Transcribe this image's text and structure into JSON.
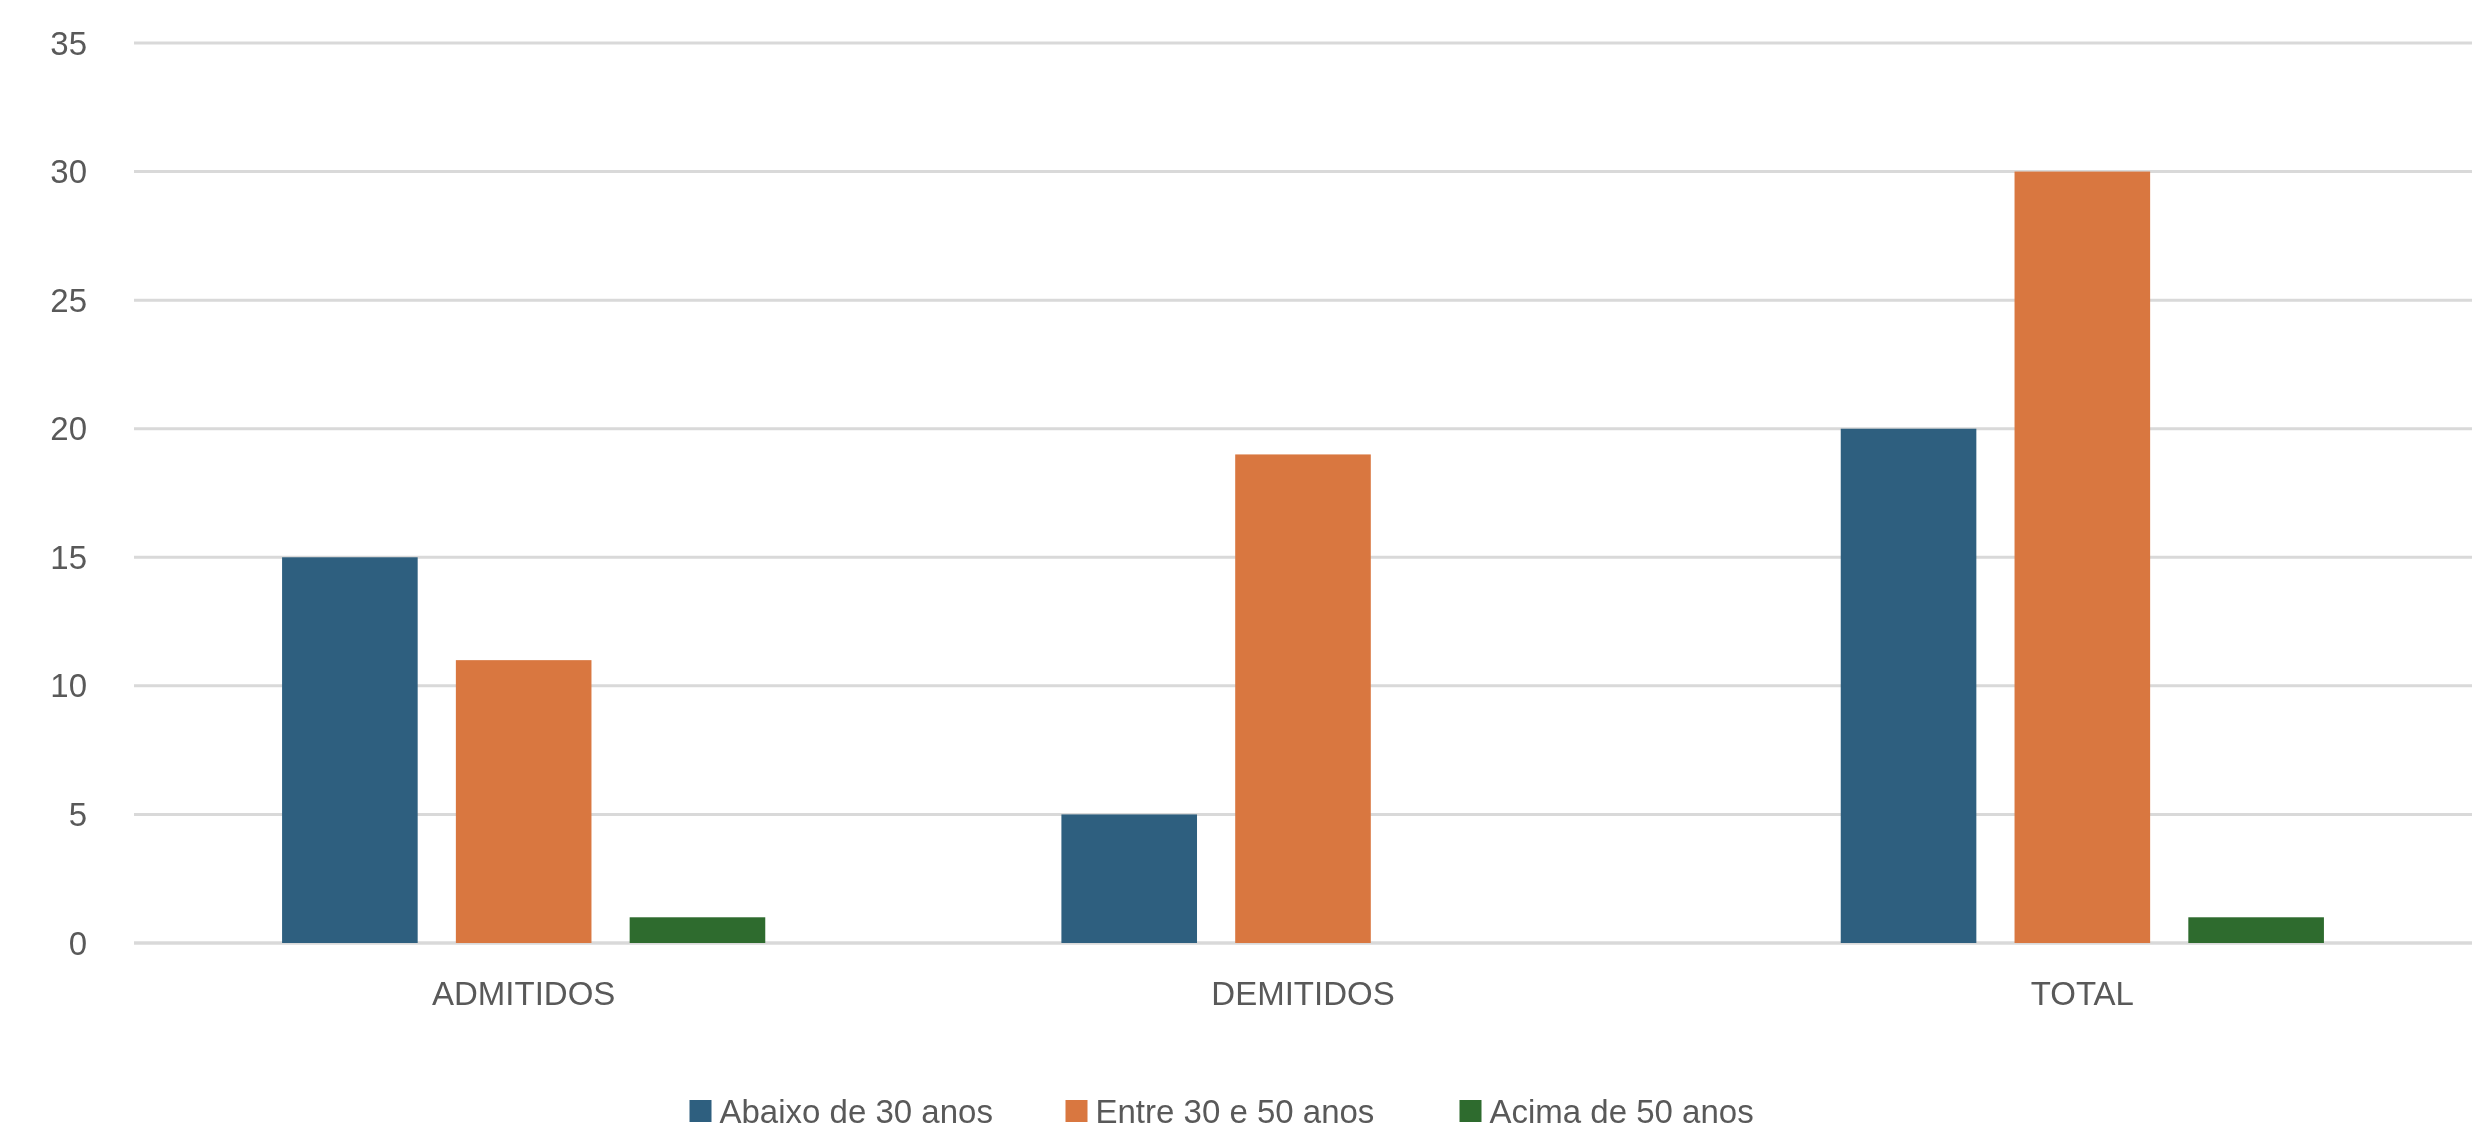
{
  "chart_data": {
    "type": "bar",
    "categories": [
      "ADMITIDOS",
      "DEMITIDOS",
      "TOTAL"
    ],
    "series": [
      {
        "name": "Abaixo de 30 anos",
        "color": "#2e5f7f",
        "values": [
          15,
          5,
          20
        ]
      },
      {
        "name": "Entre 30 e 50 anos",
        "color": "#d97740",
        "values": [
          11,
          19,
          30
        ]
      },
      {
        "name": "Acima de 50 anos",
        "color": "#2e6b2e",
        "values": [
          1,
          0,
          1
        ]
      }
    ],
    "ylim": [
      0,
      35
    ],
    "yticks": [
      0,
      5,
      10,
      15,
      20,
      25,
      30,
      35
    ],
    "grid": "y",
    "legend": "bottom"
  }
}
